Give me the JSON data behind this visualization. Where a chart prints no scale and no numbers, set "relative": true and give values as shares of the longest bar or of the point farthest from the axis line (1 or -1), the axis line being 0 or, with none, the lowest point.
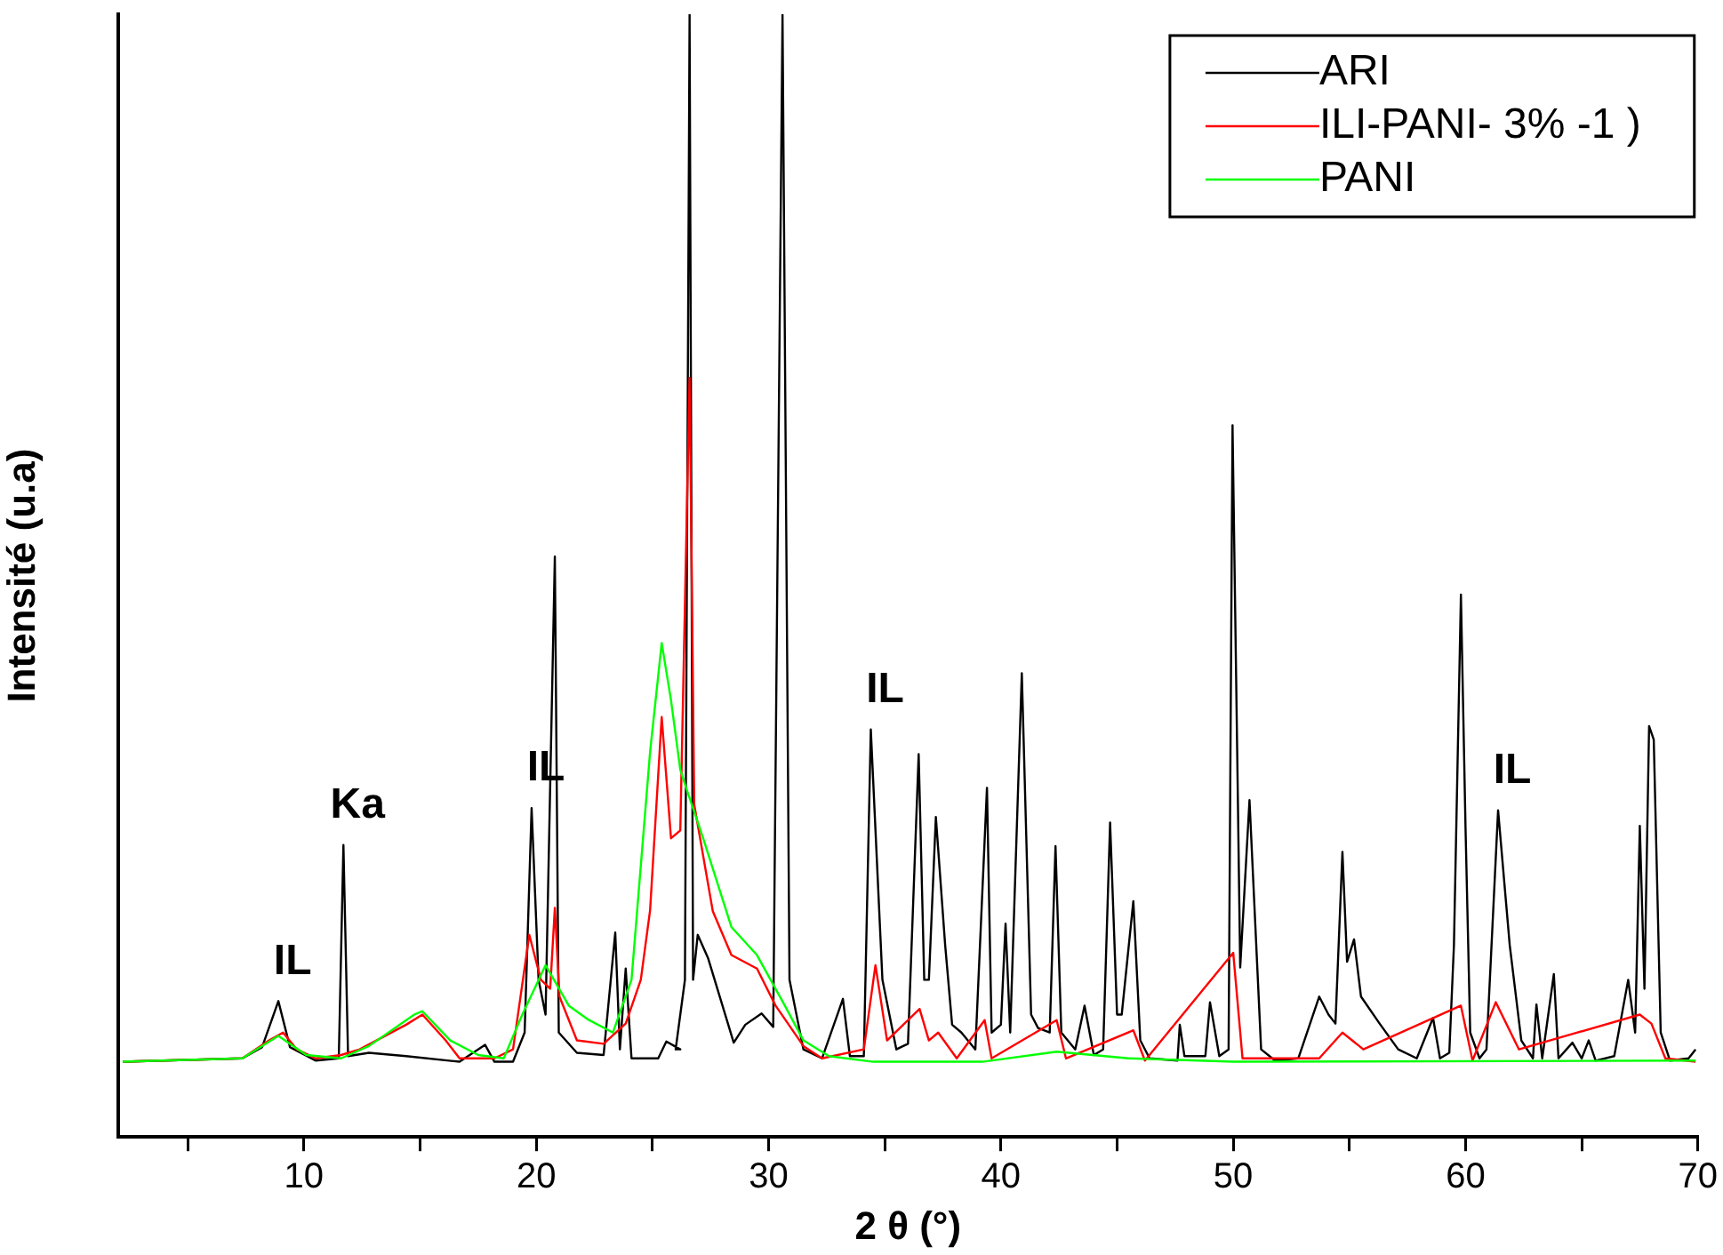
{
  "chart_data": {
    "type": "line",
    "xlabel": "2 θ (°)",
    "ylabel": "Intensité (u.a)",
    "relative": true,
    "xlim": [
      2,
      70
    ],
    "xticks": [
      {
        "value": 5,
        "label": null
      },
      10,
      {
        "value": 15,
        "label": null
      },
      20,
      {
        "value": 25,
        "label": null
      },
      30,
      {
        "value": 35,
        "label": null
      },
      40,
      {
        "value": 45,
        "label": null
      },
      50,
      {
        "value": 55,
        "label": null
      },
      60,
      {
        "value": 65,
        "label": null
      },
      70
    ],
    "grid": false,
    "legend": "top right",
    "marker": "none",
    "line_style": "solid",
    "annotations": [
      {
        "text": "IL",
        "x": 8.9,
        "y": 0.121
      },
      {
        "text": "Ka",
        "x": 11.7,
        "y": 0.26
      },
      {
        "text": "IL",
        "x": 19.8,
        "y": 0.293
      },
      {
        "text": "IL",
        "x": 34.4,
        "y": 0.363
      },
      {
        "text": "IL",
        "x": 61.4,
        "y": 0.291
      }
    ],
    "series": [
      {
        "name": "ARI",
        "color": "#000000",
        "x": [
          2.2,
          7.35,
          8.2,
          8.9,
          9.4,
          10.5,
          11.5,
          11.7,
          11.9,
          12.8,
          14.4,
          16.7,
          17.8,
          18.2,
          19,
          19.5,
          19.8,
          20.1,
          20.4,
          20.8,
          20.97,
          21.75,
          22.9,
          23.4,
          23.6,
          23.85,
          24.1,
          25.25,
          25.6,
          26.2,
          26.0,
          26.4,
          26.6,
          26.75,
          26.95,
          27.4,
          28.5,
          29,
          29.7,
          30.2,
          30.6,
          30.9,
          31.5,
          32.3,
          33.2,
          33.5,
          34.1,
          34.4,
          34.9,
          35.5,
          36,
          36.46,
          36.7,
          36.9,
          37.2,
          37.6,
          37.9,
          38.3,
          38.9,
          39.4,
          39.6,
          40,
          40.2,
          40.4,
          40.9,
          41.3,
          41.6,
          42.1,
          42.35,
          42.6,
          43.2,
          43.6,
          44,
          44.4,
          44.7,
          45,
          45.2,
          45.7,
          46,
          46.4,
          47.6,
          47.7,
          47.9,
          48.8,
          49,
          49.4,
          49.8,
          49.97,
          50.2,
          50.3,
          50.7,
          51.2,
          51.8,
          52.8,
          53.7,
          54.1,
          54.4,
          54.7,
          54.9,
          55.2,
          55.5,
          56.3,
          57.1,
          57.9,
          58.6,
          58.9,
          59.3,
          59.5,
          59.8,
          60,
          60.2,
          60.6,
          60.9,
          61.4,
          61.9,
          62.4,
          62.9,
          63.05,
          63.3,
          63.8,
          64,
          64.6,
          65,
          65.3,
          65.6,
          66.4,
          67,
          67.3,
          67.5,
          67.7,
          67.9,
          68.1,
          68.4,
          68.8,
          69.6,
          69.9
        ],
        "values": [
          0.067,
          0.07,
          0.08,
          0.121,
          0.08,
          0.068,
          0.07,
          0.26,
          0.072,
          0.075,
          0.072,
          0.067,
          0.082,
          0.067,
          0.067,
          0.093,
          0.293,
          0.14,
          0.109,
          0.517,
          0.093,
          0.075,
          0.073,
          0.182,
          0.078,
          0.15,
          0.07,
          0.07,
          0.085,
          0.078,
          0.078,
          0.14,
          1,
          0.14,
          0.18,
          0.159,
          0.084,
          0.1,
          0.11,
          0.098,
          1,
          0.14,
          0.078,
          0.07,
          0.123,
          0.072,
          0.072,
          0.363,
          0.14,
          0.078,
          0.083,
          0.341,
          0.14,
          0.14,
          0.285,
          0.171,
          0.1,
          0.093,
          0.078,
          0.311,
          0.093,
          0.1,
          0.19,
          0.093,
          0.413,
          0.109,
          0.097,
          0.093,
          0.259,
          0.093,
          0.078,
          0.117,
          0.073,
          0.078,
          0.28,
          0.109,
          0.109,
          0.21,
          0.086,
          0.07,
          0.068,
          0.1,
          0.072,
          0.072,
          0.12,
          0.072,
          0.078,
          0.634,
          0.3,
          0.151,
          0.3,
          0.078,
          0.068,
          0.07,
          0.125,
          0.109,
          0.101,
          0.254,
          0.156,
          0.176,
          0.125,
          0.101,
          0.078,
          0.07,
          0.106,
          0.07,
          0.075,
          0.171,
          0.483,
          0.274,
          0.093,
          0.07,
          0.078,
          0.291,
          0.171,
          0.086,
          0.07,
          0.118,
          0.07,
          0.145,
          0.07,
          0.084,
          0.07,
          0.086,
          0.068,
          0.072,
          0.14,
          0.093,
          0.277,
          0.132,
          0.366,
          0.354,
          0.093,
          0.068,
          0.07,
          0.078
        ]
      },
      {
        "name": "ILI-PANI- 3% -1 )",
        "color": "#ff0000",
        "x": [
          2.2,
          7.35,
          8.5,
          9.1,
          9.7,
          10.5,
          11.6,
          12.4,
          14.4,
          15.1,
          16.1,
          16.7,
          18.2,
          19,
          19.7,
          20.2,
          20.6,
          20.8,
          21,
          21.75,
          22.9,
          23.85,
          24.5,
          24.9,
          25.4,
          25.8,
          26.2,
          26.6,
          26.8,
          27.6,
          28.4,
          29.5,
          30.3,
          31.5,
          32.3,
          34.1,
          34.6,
          35.1,
          36.5,
          36.9,
          37.3,
          38.1,
          39.3,
          39.6,
          42.4,
          42.8,
          45.7,
          46.2,
          50,
          50.4,
          53.7,
          54.7,
          55.6,
          59.8,
          60.3,
          61.3,
          62.3,
          67.5,
          68,
          68.6,
          69.9
        ],
        "values": [
          0.067,
          0.07,
          0.086,
          0.093,
          0.078,
          0.07,
          0.073,
          0.078,
          0.1,
          0.109,
          0.086,
          0.07,
          0.07,
          0.078,
          0.18,
          0.14,
          0.132,
          0.204,
          0.125,
          0.086,
          0.083,
          0.101,
          0.14,
          0.202,
          0.374,
          0.266,
          0.273,
          0.676,
          0.296,
          0.201,
          0.162,
          0.15,
          0.117,
          0.081,
          0.07,
          0.078,
          0.153,
          0.086,
          0.114,
          0.086,
          0.093,
          0.07,
          0.104,
          0.07,
          0.104,
          0.07,
          0.095,
          0.068,
          0.164,
          0.07,
          0.07,
          0.093,
          0.078,
          0.117,
          0.068,
          0.12,
          0.078,
          0.109,
          0.101,
          0.07,
          0.067
        ]
      },
      {
        "name": "PANI",
        "color": "#00ff00",
        "x": [
          2.2,
          7.35,
          8.9,
          10.1,
          11.6,
          12.8,
          14.75,
          15.1,
          16.3,
          17.5,
          18.6,
          19.4,
          20.4,
          21.4,
          22.2,
          23.3,
          24.1,
          24.9,
          25.4,
          25.8,
          26.2,
          26.5,
          27.2,
          28.4,
          29.5,
          30.7,
          31.5,
          32.6,
          34.5,
          39.2,
          42.4,
          45.5,
          50,
          69.9
        ],
        "values": [
          0.067,
          0.07,
          0.09,
          0.073,
          0.07,
          0.081,
          0.109,
          0.112,
          0.086,
          0.073,
          0.07,
          0.109,
          0.153,
          0.117,
          0.105,
          0.093,
          0.14,
          0.343,
          0.44,
          0.389,
          0.327,
          0.308,
          0.265,
          0.187,
          0.162,
          0.117,
          0.086,
          0.072,
          0.067,
          0.067,
          0.076,
          0.07,
          0.067,
          0.068
        ]
      }
    ]
  }
}
